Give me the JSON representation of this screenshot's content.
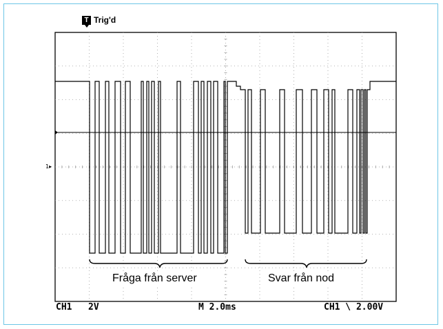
{
  "scope": {
    "trigger_icon": "T",
    "trigger_status": "Trig'd",
    "channel_marker": "1▸",
    "labels": {
      "request": "Fråga från server",
      "response": "Svar från nod"
    },
    "status_bar": {
      "channel": "CH1",
      "volts_per_div": "2V",
      "timebase": "M 2.0ms",
      "trigger_setting": "CH1 \\ 2.00V"
    },
    "colors": {
      "background": "#ffffff",
      "trace": "#000000",
      "grid": "#9a9a9a",
      "frame": "#6cc6e6"
    }
  }
}
